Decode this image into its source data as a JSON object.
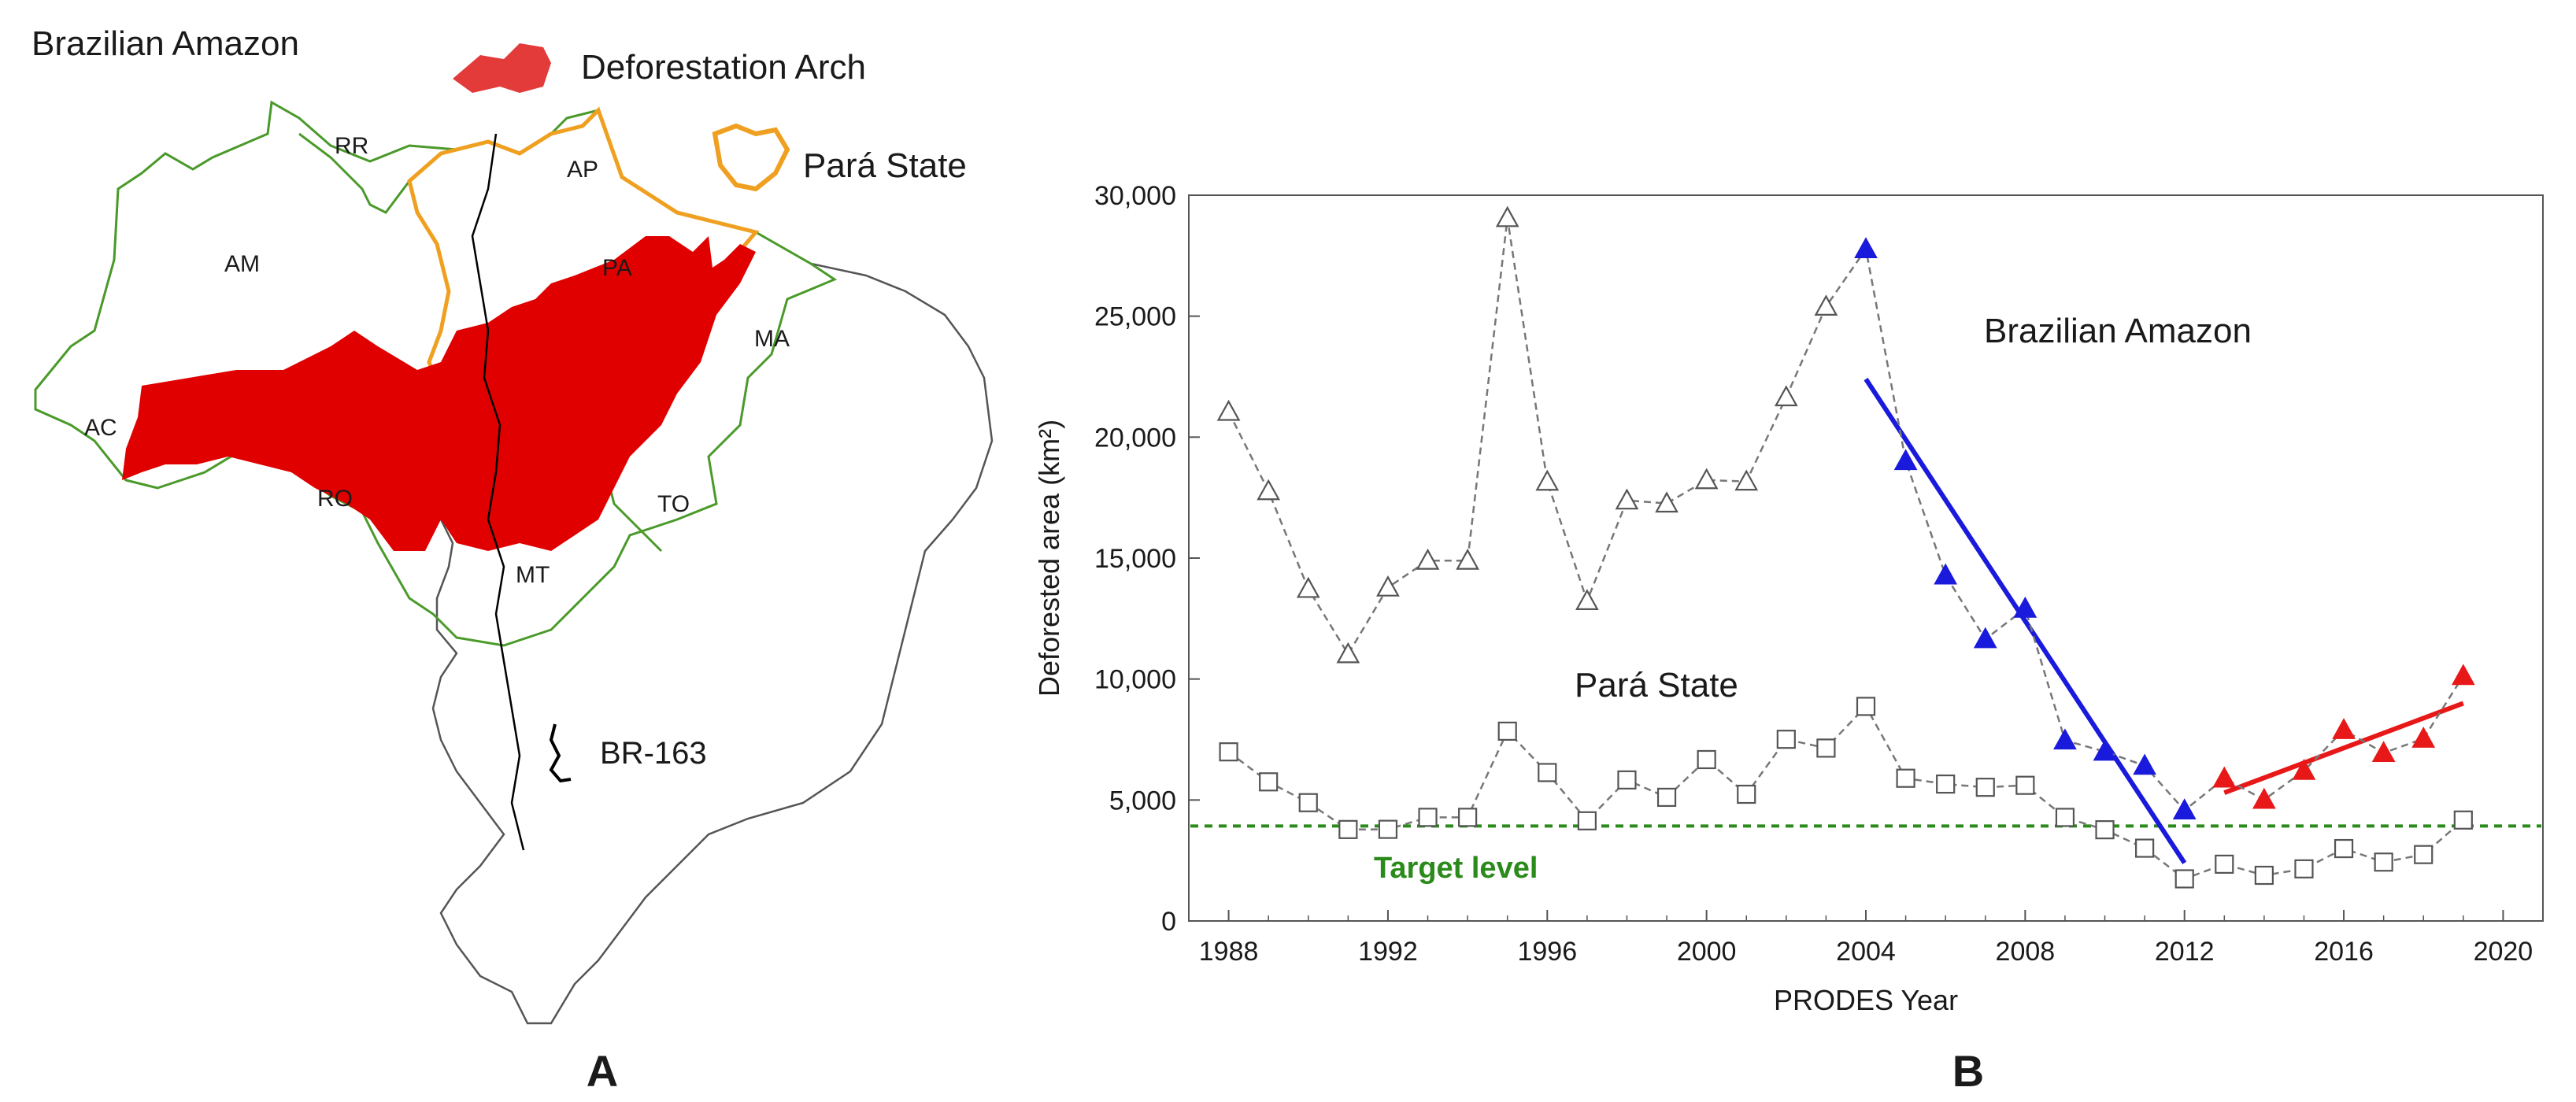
{
  "panel_a": {
    "letter": "A",
    "title": "Brazilian Amazon",
    "legend": {
      "arch_label": "Deforestation Arch",
      "para_label": "Pará State",
      "road_label": "BR-163"
    },
    "states": [
      "RR",
      "AP",
      "AM",
      "PA",
      "MA",
      "AC",
      "RO",
      "TO",
      "MT"
    ],
    "colors": {
      "arch": "#e00000",
      "para": "#f0a020",
      "states": "#4a9a2a",
      "country": "#555555",
      "road": "#000000"
    }
  },
  "panel_b": {
    "letter": "B"
  },
  "chart_data": {
    "type": "line",
    "xlabel": "PRODES Year",
    "ylabel": "Deforested area (km²)",
    "xlim": [
      1987,
      2021
    ],
    "ylim": [
      0,
      30000
    ],
    "xticks": [
      1988,
      1992,
      1996,
      2000,
      2004,
      2008,
      2012,
      2016,
      2020
    ],
    "yticks": [
      0,
      5000,
      10000,
      15000,
      20000,
      25000,
      30000
    ],
    "ytick_labels": [
      "0",
      "5,000",
      "10,000",
      "15,000",
      "20,000",
      "25,000",
      "30,000"
    ],
    "grid": false,
    "annotations": {
      "amazon_label": "Brazilian Amazon",
      "para_label": "Pará State",
      "target_label": "Target level"
    },
    "target_level": 3925,
    "series": [
      {
        "name": "Brazilian Amazon",
        "marker": "triangle",
        "x": [
          1988,
          1989,
          1990,
          1991,
          1992,
          1993,
          1994,
          1995,
          1996,
          1997,
          1998,
          1999,
          2000,
          2001,
          2002,
          2003,
          2004,
          2005,
          2006,
          2007,
          2008,
          2009,
          2010,
          2011,
          2012,
          2013,
          2014,
          2015,
          2016,
          2017,
          2018,
          2019
        ],
        "y": [
          21050,
          17770,
          13730,
          11030,
          13786,
          14896,
          14896,
          29059,
          18161,
          13227,
          17383,
          17259,
          18226,
          18165,
          21651,
          25396,
          27772,
          19014,
          14286,
          11651,
          12911,
          7464,
          7000,
          6418,
          4571,
          5891,
          5012,
          6207,
          7893,
          6947,
          7536,
          10129
        ],
        "marker_color": [
          "gray",
          "gray",
          "gray",
          "gray",
          "gray",
          "gray",
          "gray",
          "gray",
          "gray",
          "gray",
          "gray",
          "gray",
          "gray",
          "gray",
          "gray",
          "gray",
          "blue",
          "blue",
          "blue",
          "blue",
          "blue",
          "blue",
          "blue",
          "blue",
          "blue",
          "red",
          "red",
          "red",
          "red",
          "red",
          "red",
          "red"
        ]
      },
      {
        "name": "Pará State",
        "marker": "square",
        "x": [
          1988,
          1989,
          1990,
          1991,
          1992,
          1993,
          1994,
          1995,
          1996,
          1997,
          1998,
          1999,
          2000,
          2001,
          2002,
          2003,
          2004,
          2005,
          2006,
          2007,
          2008,
          2009,
          2010,
          2011,
          2012,
          2013,
          2014,
          2015,
          2016,
          2017,
          2018,
          2019
        ],
        "y": [
          6990,
          5750,
          4890,
          3780,
          3787,
          4284,
          4284,
          7845,
          6135,
          4139,
          5829,
          5111,
          6671,
          5237,
          7510,
          7145,
          8870,
          5899,
          5659,
          5526,
          5607,
          4281,
          3770,
          3008,
          1741,
          2346,
          1887,
          2153,
          2992,
          2433,
          2744,
          4172
        ]
      }
    ],
    "trend_lines": [
      {
        "color": "blue",
        "x": [
          2004,
          2012
        ],
        "y": [
          22400,
          2400
        ]
      },
      {
        "color": "red",
        "x": [
          2013,
          2019
        ],
        "y": [
          5300,
          9000
        ]
      }
    ]
  }
}
